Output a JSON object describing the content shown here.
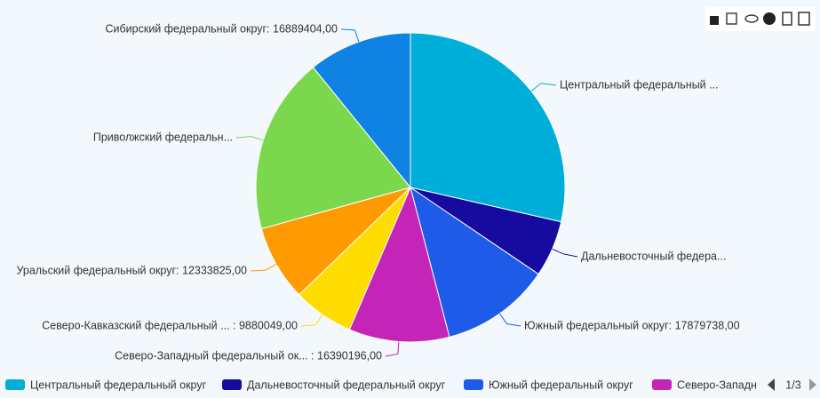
{
  "chart_data": {
    "type": "pie",
    "labels": [
      "Центральный федеральный ...",
      "Дальневосточный федера...",
      "Южный федеральный округ: 17879738,00",
      "Северо-Западный федеральный ок... : 16390196,00",
      "Северо-Кавказский федеральный ... : 9880049,00",
      "Уральский федеральный округ: 12333825,00",
      "Приволжский федеральн...",
      "Сибирский федеральный округ: 16889404,00"
    ],
    "values": [
      44550000,
      9200000,
      17879738,
      16390196,
      9880049,
      12333825,
      28800000,
      16889404
    ],
    "colors": [
      "#00afd9",
      "#160a9f",
      "#1e5be9",
      "#c424b7",
      "#ffdc00",
      "#ff9a00",
      "#7bd84c",
      "#0f82e3"
    ],
    "legend_items": [
      "Центральный федеральный округ",
      "Дальневосточный федеральный округ",
      "Южный федеральный округ",
      "Северо-Западн"
    ],
    "legend_page": "1/3"
  }
}
